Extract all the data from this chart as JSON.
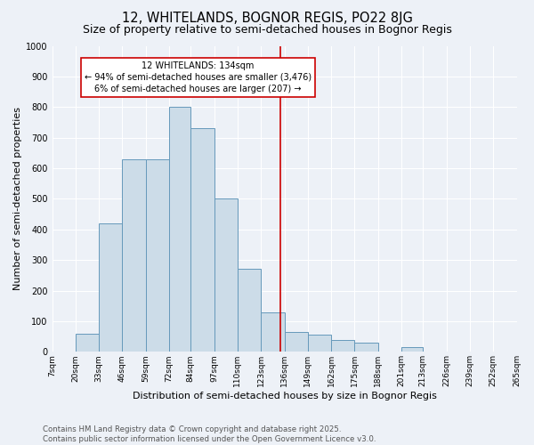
{
  "title": "12, WHITELANDS, BOGNOR REGIS, PO22 8JG",
  "subtitle": "Size of property relative to semi-detached houses in Bognor Regis",
  "xlabel": "Distribution of semi-detached houses by size in Bognor Regis",
  "ylabel": "Number of semi-detached properties",
  "bins_labels": [
    "7sqm",
    "20sqm",
    "33sqm",
    "46sqm",
    "59sqm",
    "72sqm",
    "84sqm",
    "97sqm",
    "110sqm",
    "123sqm",
    "136sqm",
    "149sqm",
    "162sqm",
    "175sqm",
    "188sqm",
    "201sqm",
    "213sqm",
    "226sqm",
    "239sqm",
    "252sqm",
    "265sqm"
  ],
  "bin_edges": [
    7,
    20,
    33,
    46,
    59,
    72,
    84,
    97,
    110,
    123,
    136,
    149,
    162,
    175,
    188,
    201,
    213,
    226,
    239,
    252,
    265
  ],
  "values": [
    0,
    60,
    420,
    630,
    630,
    800,
    730,
    500,
    270,
    130,
    65,
    55,
    40,
    30,
    0,
    15,
    0,
    0,
    0,
    0
  ],
  "bar_color": "#ccdce8",
  "bar_edge_color": "#6699bb",
  "vline_x": 134,
  "vline_color": "#cc0000",
  "annotation_line1": "12 WHITELANDS: 134sqm",
  "annotation_line2": "← 94% of semi-detached houses are smaller (3,476)",
  "annotation_line3": "6% of semi-detached houses are larger (207) →",
  "annotation_color": "#cc0000",
  "annotation_bg": "white",
  "ylim_max": 1000,
  "yticks": [
    0,
    100,
    200,
    300,
    400,
    500,
    600,
    700,
    800,
    900,
    1000
  ],
  "footer_line1": "Contains HM Land Registry data © Crown copyright and database right 2025.",
  "footer_line2": "Contains public sector information licensed under the Open Government Licence v3.0.",
  "background_color": "#edf1f7",
  "grid_color": "white",
  "title_fontsize": 10.5,
  "subtitle_fontsize": 9,
  "tick_fontsize": 6.5,
  "ylabel_fontsize": 8,
  "xlabel_fontsize": 8,
  "footer_fontsize": 6.2,
  "annotation_fontsize": 7
}
